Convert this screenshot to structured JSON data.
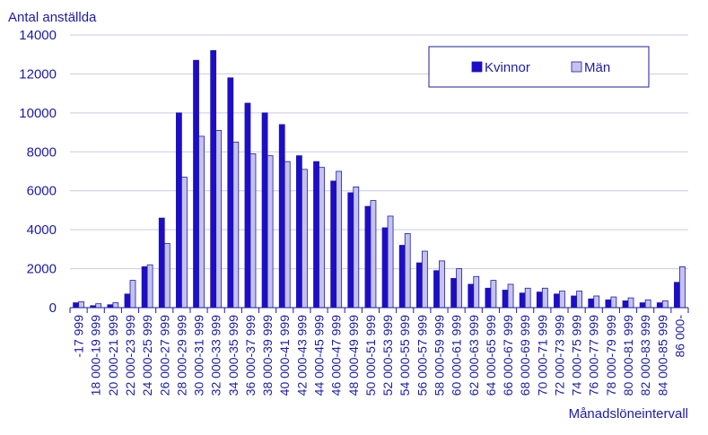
{
  "chart_data": {
    "type": "bar",
    "ylabel": "Antal anställda",
    "xlabel": "Månadslöneintervall",
    "ylim": [
      0,
      14000
    ],
    "yticks": [
      0,
      2000,
      4000,
      6000,
      8000,
      10000,
      12000,
      14000
    ],
    "grid": true,
    "legend_position": "top-right",
    "categories": [
      "-17 999",
      "18 000-19 999",
      "20 000-21 999",
      "22 000-23 999",
      "24 000-25 999",
      "26 000-27 999",
      "28 000-29 999",
      "30 000-31 999",
      "32 000-33 999",
      "34 000-35 999",
      "36 000-37 999",
      "38 000-39 999",
      "40 000-41 999",
      "42 000-43 999",
      "44 000-45 999",
      "46 000-47 999",
      "48 000-49 999",
      "50 000-51 999",
      "52 000-53 999",
      "54 000-55 999",
      "56 000-57 999",
      "58 000-59 999",
      "60 000-61 999",
      "62 000-63 999",
      "64 000-65 999",
      "66 000-67 999",
      "68 000-69 999",
      "70 000-71 999",
      "72 000-73 999",
      "74 000-75 999",
      "76 000-77 999",
      "78 000-79 999",
      "80 000-81 999",
      "82 000-83 999",
      "84 000-85 999",
      "86 000-"
    ],
    "series": [
      {
        "name": "Kvinnor",
        "color": "#1f0cc8",
        "values": [
          250,
          100,
          150,
          700,
          2100,
          4600,
          10000,
          12700,
          13200,
          11800,
          10500,
          10000,
          9400,
          7800,
          7500,
          6500,
          5900,
          5200,
          4100,
          3200,
          2300,
          1900,
          1500,
          1200,
          1000,
          900,
          750,
          800,
          700,
          600,
          450,
          400,
          350,
          250,
          250,
          1300
        ]
      },
      {
        "name": "Män",
        "color": "#c5c3ee",
        "values": [
          300,
          200,
          250,
          1400,
          2200,
          3300,
          6700,
          8800,
          9100,
          8500,
          7900,
          7800,
          7500,
          7100,
          7200,
          7000,
          6200,
          5500,
          4700,
          3800,
          2900,
          2400,
          2000,
          1600,
          1400,
          1200,
          1000,
          1000,
          850,
          850,
          600,
          550,
          500,
          400,
          350,
          2100
        ]
      }
    ]
  }
}
